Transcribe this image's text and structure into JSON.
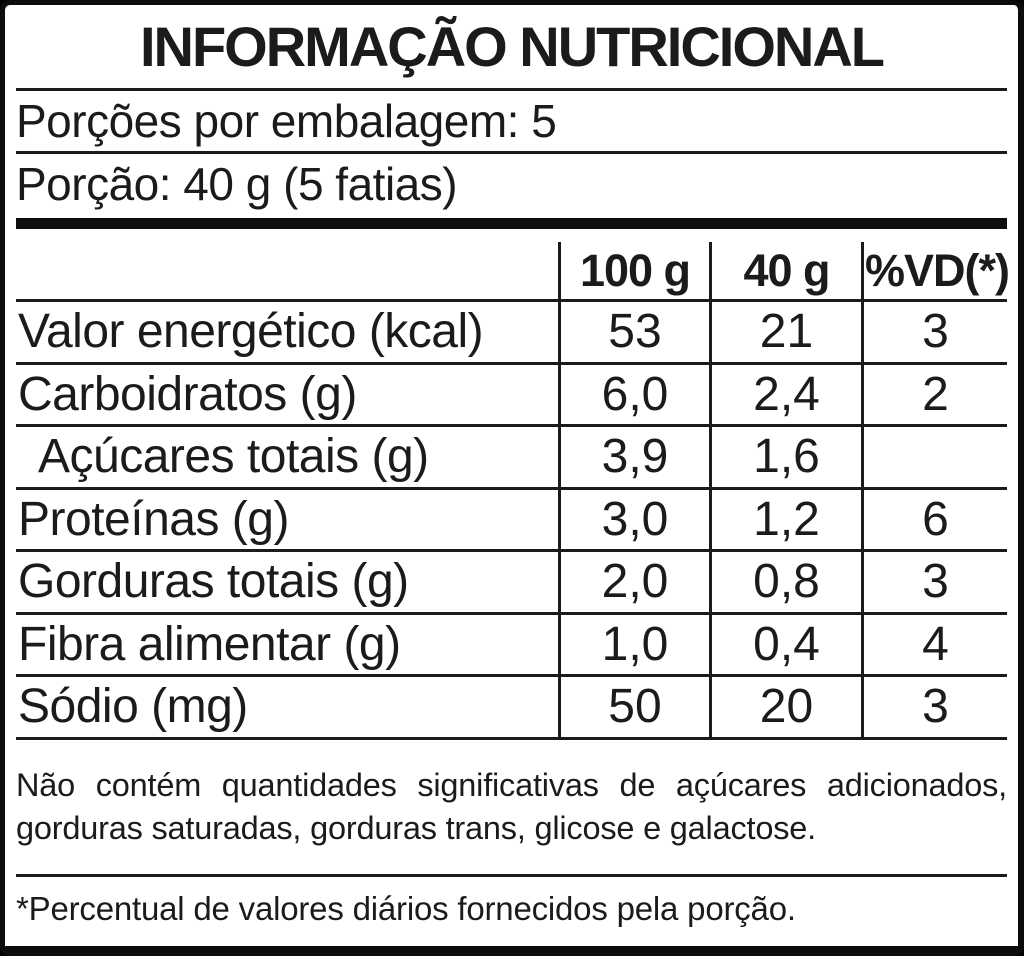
{
  "label": {
    "title": "INFORMAÇÃO NUTRICIONAL",
    "servings_line": "Porções por embalagem: 5",
    "portion_line": "Porção: 40 g (5 fatias)",
    "columns": [
      "100 g",
      "40 g",
      "%VD(*)"
    ],
    "rows": [
      {
        "name": "Valor energético (kcal)",
        "per100": "53",
        "per40": "21",
        "vd": "3",
        "indent": false
      },
      {
        "name": "Carboidratos (g)",
        "per100": "6,0",
        "per40": "2,4",
        "vd": "2",
        "indent": false
      },
      {
        "name": "Açúcares totais (g)",
        "per100": "3,9",
        "per40": "1,6",
        "vd": "",
        "indent": true
      },
      {
        "name": "Proteínas (g)",
        "per100": "3,0",
        "per40": "1,2",
        "vd": "6",
        "indent": false
      },
      {
        "name": "Gorduras totais (g)",
        "per100": "2,0",
        "per40": "0,8",
        "vd": "3",
        "indent": false
      },
      {
        "name": "Fibra alimentar (g)",
        "per100": "1,0",
        "per40": "0,4",
        "vd": "4",
        "indent": false
      },
      {
        "name": "Sódio (mg)",
        "per100": "50",
        "per40": "20",
        "vd": "3",
        "indent": false
      }
    ],
    "note": "Não contém quantidades significativas de açúcares adicionados, gorduras saturadas, gorduras trans, glicose e galactose.",
    "footnote": "*Percentual de valores diários fornecidos pela porção.",
    "colors": {
      "ink": "#1d1b1a",
      "background": "#ffffff"
    }
  }
}
